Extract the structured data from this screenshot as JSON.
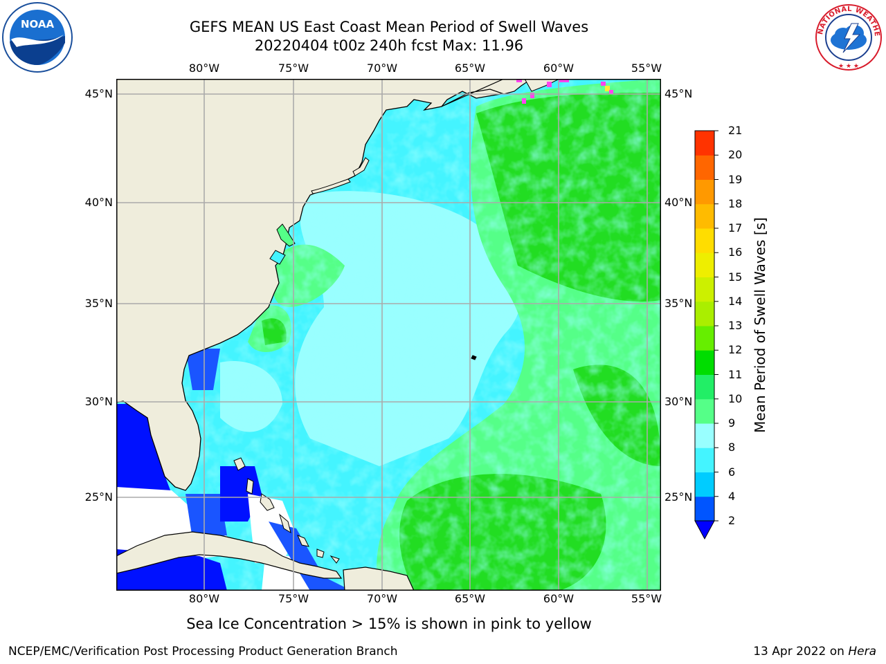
{
  "title": {
    "line1": "GEFS MEAN US East Coast Mean Period of Swell Waves",
    "line2": "20220404 t00z 240h fcst   Max: 11.96"
  },
  "map": {
    "lon_labels": [
      "80°W",
      "75°W",
      "70°W",
      "65°W",
      "60°W",
      "55°W"
    ],
    "lat_labels": [
      "45°N",
      "40°N",
      "35°N",
      "30°N",
      "25°N"
    ],
    "land_color": "#efeddc",
    "no_data_color": "#ffffff",
    "sea_ice_color": "#ff44ee",
    "features": [
      "coastline",
      "graticule",
      "sea-ice",
      "swell-period-field"
    ]
  },
  "colorbar": {
    "title": "Mean Period of Swell Waves [s]",
    "labels": [
      "2",
      "4",
      "6",
      "8",
      "9",
      "10",
      "11",
      "12",
      "13",
      "14",
      "15",
      "16",
      "17",
      "18",
      "19",
      "20",
      "21"
    ],
    "colors": [
      "#0055ff",
      "#00ccff",
      "#44f4ff",
      "#99ffff",
      "#55ff88",
      "#22ee66",
      "#00dd00",
      "#66ee00",
      "#aaee00",
      "#ccf000",
      "#eeee00",
      "#ffdd00",
      "#ffbb00",
      "#ff9900",
      "#ff6600",
      "#ff3300",
      "#ff0000"
    ],
    "under_color": "#0000ff"
  },
  "footer": {
    "note": "Sea Ice Concentration > 15% is shown in pink to yellow",
    "credit": "NCEP/EMC/Verification Post Processing Product Generation Branch",
    "date": "13 Apr 2022 on ",
    "machine": "Hera"
  },
  "logos": {
    "noaa_text": "NOAA",
    "nws_text": "NATIONAL WEATHER SERVICE"
  }
}
